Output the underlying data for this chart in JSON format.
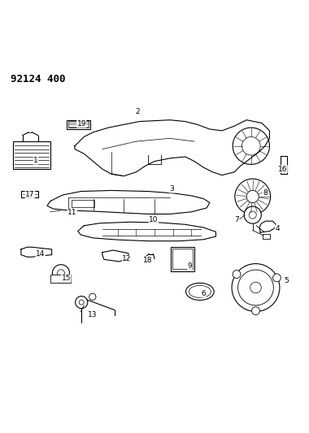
{
  "title": "92124 400",
  "background_color": "#ffffff",
  "line_color": "#000000",
  "fig_width": 3.8,
  "fig_height": 5.33,
  "dpi": 100
}
